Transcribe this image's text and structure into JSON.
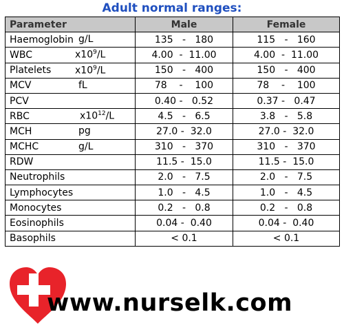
{
  "header": {
    "title": "Adult normal ranges:"
  },
  "table": {
    "columns": [
      "Parameter",
      "Male",
      "Female"
    ],
    "rows": [
      {
        "name": "Haemoglobin",
        "unit": "g/L",
        "male": "135   -   180",
        "female": "115   -   160"
      },
      {
        "name": "WBC",
        "unit": {
          "text": "x10",
          "sup": "9",
          "tail": "/L"
        },
        "male": "4.00  -  11.00",
        "female": "4.00  -  11.00"
      },
      {
        "name": "Platelets",
        "unit": {
          "text": "x10",
          "sup": "9",
          "tail": "/L"
        },
        "male": "150   -   400",
        "female": "150   -   400"
      },
      {
        "name": "MCV",
        "unit": "fL",
        "male": "78    -    100",
        "female": "78    -    100"
      },
      {
        "name": "PCV",
        "male": "0.40 -   0.52",
        "female": "0.37 -   0.47"
      },
      {
        "name": "RBC",
        "unit": {
          "text": "x10",
          "sup": "12",
          "tail": "/L"
        },
        "male": "4.5   -   6.5",
        "female": "3.8   -   5.8"
      },
      {
        "name": "MCH",
        "unit": "pg",
        "male": "27.0 -  32.0",
        "female": "27.0 -  32.0"
      },
      {
        "name": "MCHC",
        "unit": "g/L",
        "male": "310   -   370",
        "female": "310   -   370"
      },
      {
        "name": "RDW",
        "male": "11.5 -  15.0",
        "female": "11.5 -  15.0"
      },
      {
        "name": "Neutrophils",
        "male": "2.0   -   7.5",
        "female": "2.0   -   7.5"
      },
      {
        "name": "Lymphocytes",
        "male": "1.0   -   4.5",
        "female": "1.0   -   4.5"
      },
      {
        "name": "Monocytes",
        "male": "0.2   -   0.8",
        "female": "0.2   -   0.8"
      },
      {
        "name": "Eosinophils",
        "male": "0.04 -  0.40",
        "female": "0.04 -  0.40"
      },
      {
        "name": "Basophils",
        "male": "< 0.1",
        "female": "< 0.1"
      }
    ]
  },
  "footer": {
    "website": "www.nurselk.com"
  }
}
